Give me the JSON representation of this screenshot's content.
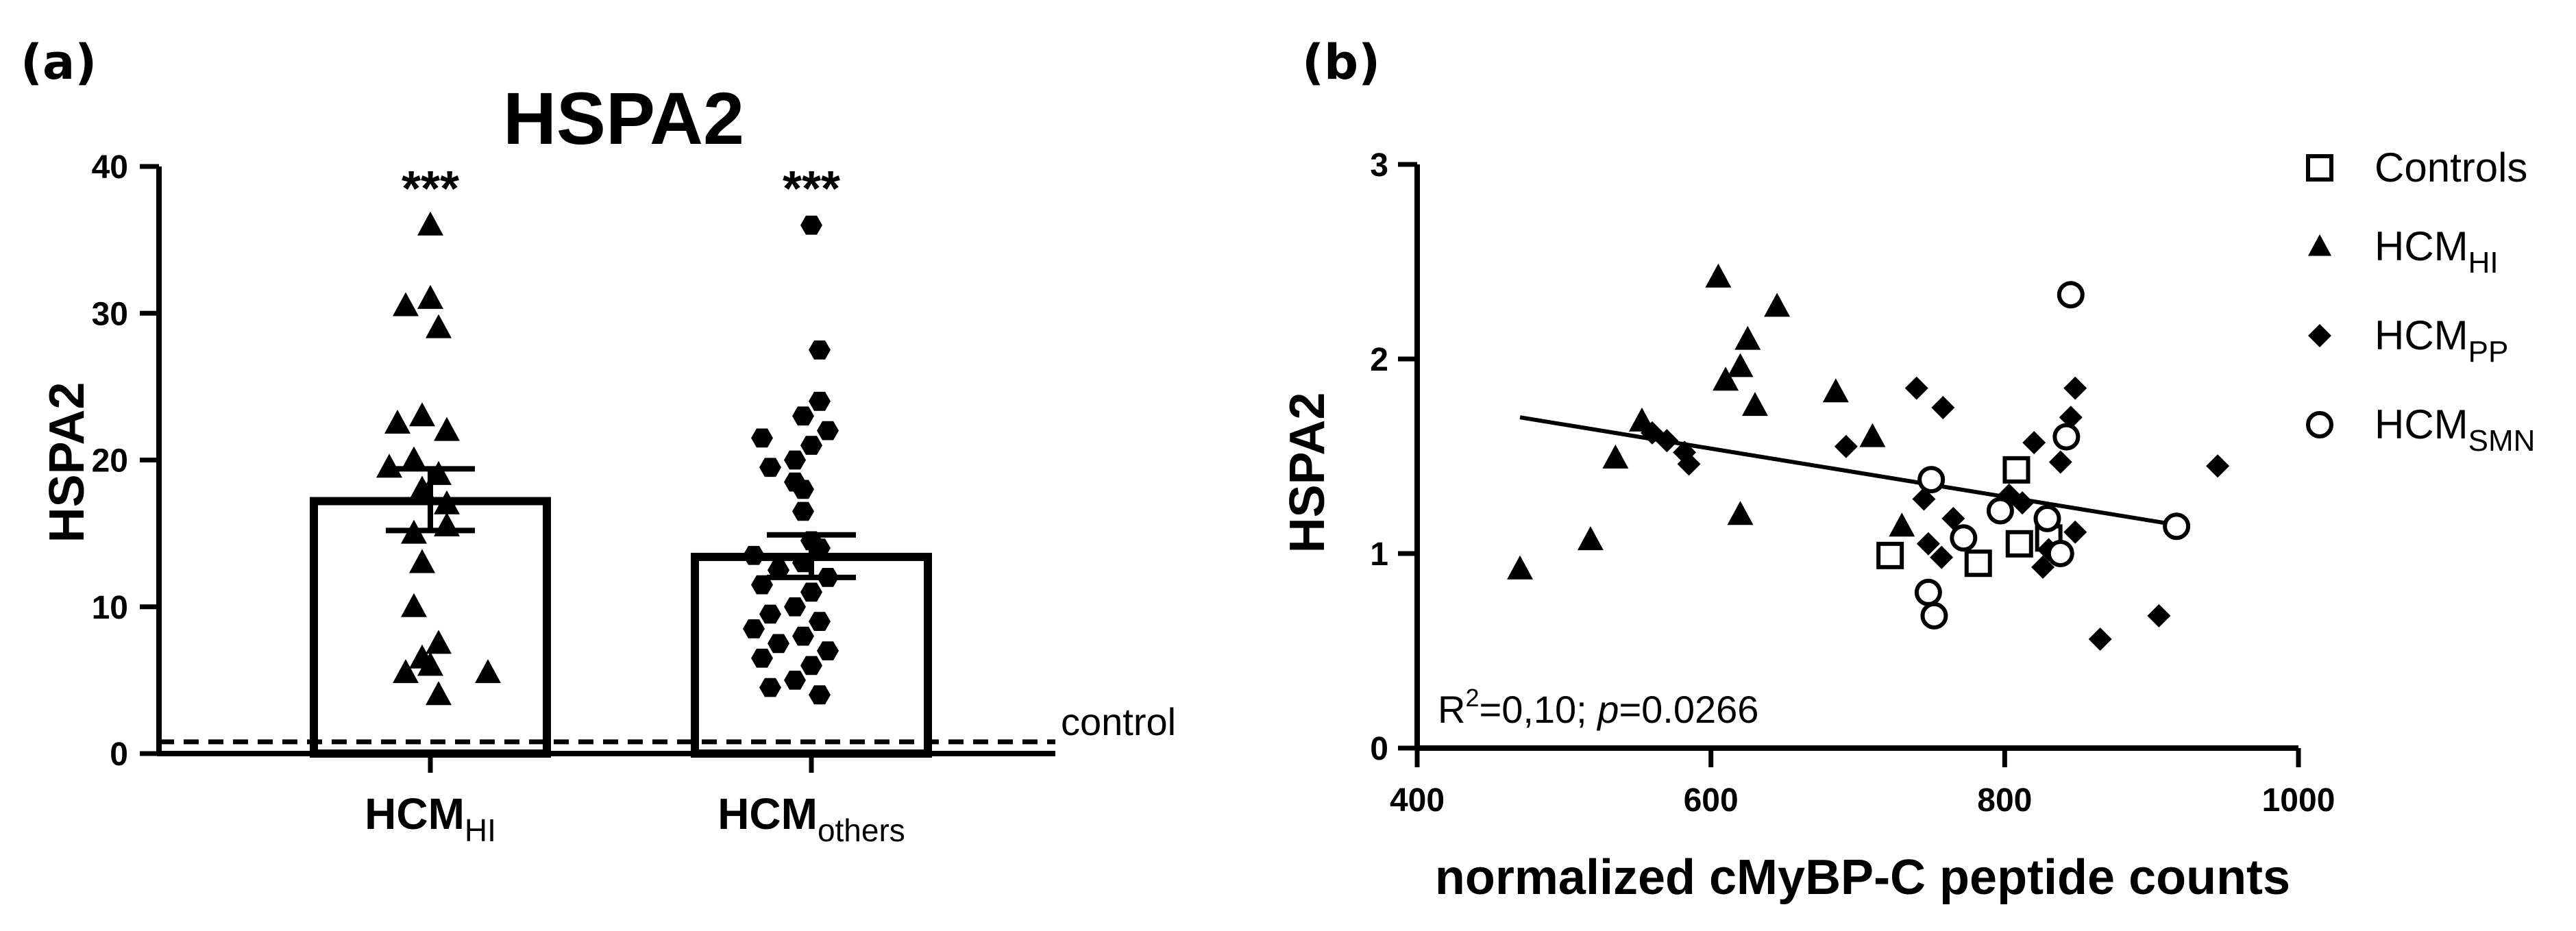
{
  "panels": {
    "a": "(a)",
    "b": "(b)"
  },
  "chart_data": [
    {
      "type": "bar",
      "title": "HSPA2",
      "ylabel": "HSPA2",
      "xlabel": "",
      "ylim": [
        0,
        40
      ],
      "yticks": [
        "0",
        "10",
        "20",
        "30",
        "40"
      ],
      "categories": [
        {
          "main": "HCM",
          "sub": "HI",
          "marker": "triangle",
          "mean": 17.2,
          "sem_low": 15.2,
          "sem_high": 19.4,
          "significance": "***",
          "points": [
            36,
            31,
            30.5,
            29,
            23,
            22.5,
            22,
            20,
            19.5,
            19,
            18,
            17,
            15.5,
            15,
            13,
            10,
            7.5,
            6.5,
            6,
            5.5,
            5.5,
            4
          ]
        },
        {
          "main": "HCM",
          "sub": "others",
          "marker": "hexagon",
          "mean": 13.4,
          "sem_low": 12.0,
          "sem_high": 14.9,
          "significance": "***",
          "points": [
            36,
            27.5,
            24,
            23,
            22,
            21.5,
            21,
            20,
            19.5,
            18.5,
            18,
            16.5,
            14.5,
            14,
            13.5,
            13,
            12.5,
            12,
            11.5,
            11,
            10,
            9.5,
            9,
            8.5,
            8,
            7.5,
            7,
            6.5,
            6,
            5,
            4.5,
            4
          ]
        }
      ],
      "reference_line": {
        "value": 0.8,
        "label": "control"
      }
    },
    {
      "type": "scatter",
      "xlabel": "normalized cMyBP-C peptide counts",
      "ylabel": "HSPA2",
      "xlim": [
        400,
        1000
      ],
      "ylim": [
        0,
        3
      ],
      "xticks": [
        "400",
        "600",
        "800",
        "1000"
      ],
      "yticks": [
        "0",
        "1",
        "2",
        "3"
      ],
      "series": [
        {
          "name": "Controls",
          "sub": "",
          "marker": "open-square",
          "x": [
            722,
            782,
            808,
            810,
            830
          ],
          "y": [
            0.99,
            0.95,
            1.43,
            1.05,
            1.08
          ]
        },
        {
          "name": "HCM",
          "sub": "HI",
          "marker": "triangle",
          "x": [
            470,
            518,
            535,
            553,
            605,
            610,
            620,
            625,
            630,
            620,
            645,
            685,
            710,
            730
          ],
          "y": [
            0.92,
            1.07,
            1.49,
            1.68,
            2.42,
            1.89,
            1.96,
            2.1,
            1.76,
            1.2,
            2.27,
            1.83,
            1.6,
            1.14
          ]
        },
        {
          "name": "HCM",
          "sub": "PP",
          "marker": "diamond",
          "x": [
            560,
            570,
            582,
            585,
            692,
            740,
            745,
            748,
            757,
            758,
            765,
            803,
            812,
            820,
            826,
            830,
            838,
            845,
            848,
            848,
            865,
            905,
            945
          ],
          "y": [
            1.62,
            1.58,
            1.52,
            1.46,
            1.55,
            1.85,
            1.28,
            1.05,
            0.98,
            1.75,
            1.18,
            1.3,
            1.26,
            1.57,
            0.93,
            1.02,
            1.47,
            1.7,
            1.85,
            1.11,
            0.56,
            0.68,
            1.45
          ]
        },
        {
          "name": "HCM",
          "sub": "SMN",
          "marker": "open-circle",
          "x": [
            748,
            752,
            750,
            772,
            797,
            829,
            838,
            842,
            845,
            917
          ],
          "y": [
            0.8,
            0.68,
            1.38,
            1.08,
            1.22,
            1.18,
            1.0,
            1.6,
            2.33,
            1.14
          ]
        }
      ],
      "regression": {
        "x": [
          470,
          915
        ],
        "y": [
          1.7,
          1.15
        ]
      },
      "annotation": {
        "r2_prefix": "R",
        "r2_sup": "2",
        "r2_rest": "=0,10; ",
        "p_label": "p",
        "p_value": "=0.0266"
      }
    }
  ]
}
